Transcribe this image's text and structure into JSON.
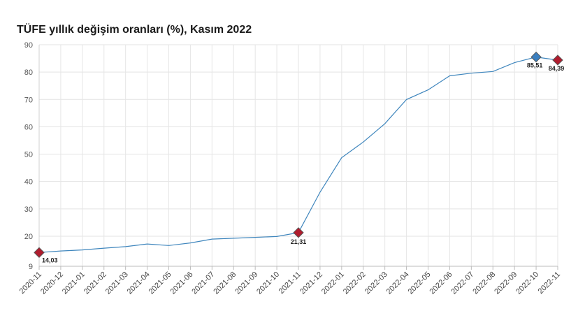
{
  "chart_data": {
    "type": "line",
    "title": "TÜFE yıllık değişim oranları (%), Kasım 2022",
    "xlabel": "",
    "ylabel": "",
    "ylim": [
      9,
      90
    ],
    "yticks": [
      9,
      20,
      30,
      40,
      50,
      60,
      70,
      80,
      90
    ],
    "grid": true,
    "categories": [
      "2020-11",
      "2020-12",
      "2021-01",
      "2021-02",
      "2021-03",
      "2021-04",
      "2021-05",
      "2021-06",
      "2021-07",
      "2021-08",
      "2021-09",
      "2021-10",
      "2021-11",
      "2021-12",
      "2022-01",
      "2022-02",
      "2022-03",
      "2022-04",
      "2022-05",
      "2022-06",
      "2022-07",
      "2022-08",
      "2022-09",
      "2022-10",
      "2022-11"
    ],
    "series": [
      {
        "values": [
          14.03,
          14.6,
          14.97,
          15.61,
          16.19,
          17.14,
          16.59,
          17.53,
          18.95,
          19.25,
          19.58,
          19.89,
          21.31,
          36.08,
          48.69,
          54.44,
          61.14,
          69.97,
          73.5,
          78.62,
          79.6,
          80.21,
          83.45,
          85.51,
          84.39
        ],
        "color": "#3f86bd"
      }
    ],
    "markers": [
      {
        "index": 0,
        "label": "14,03",
        "color": "#b01c2e"
      },
      {
        "index": 12,
        "label": "21,31",
        "color": "#b01c2e"
      },
      {
        "index": 23,
        "label": "85,51",
        "color": "#3a7fbf"
      },
      {
        "index": 24,
        "label": "84,39",
        "color": "#b01c2e"
      }
    ]
  }
}
